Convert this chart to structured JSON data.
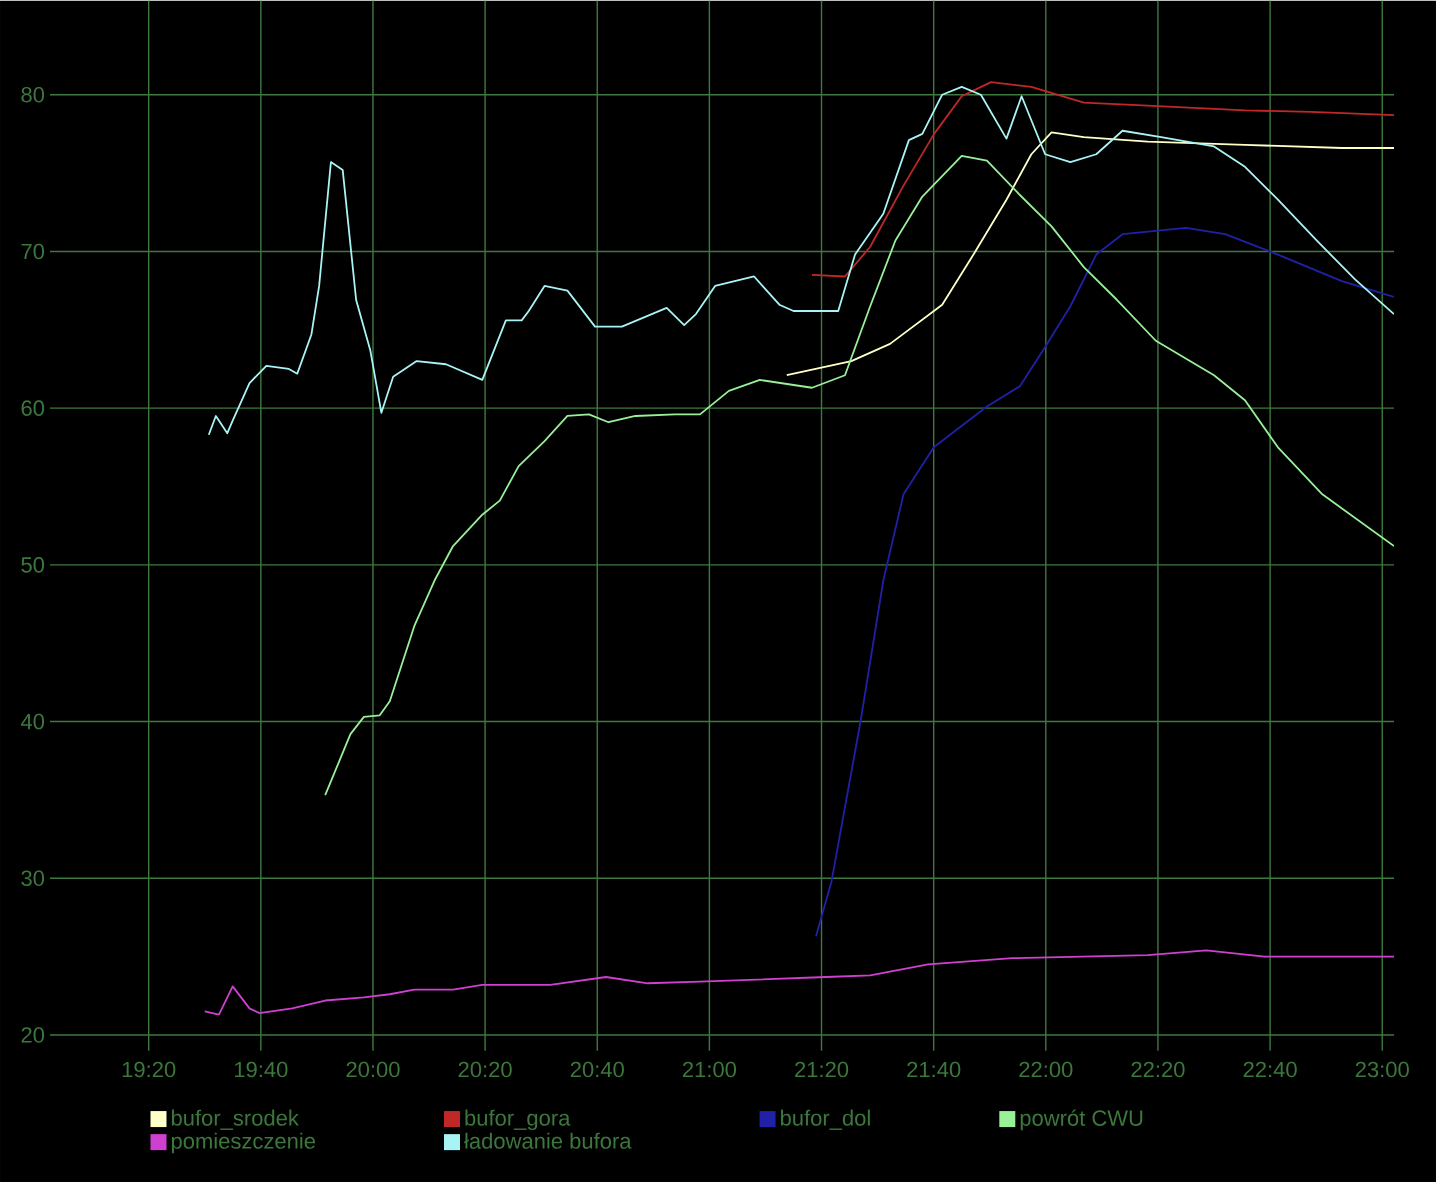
{
  "chart_data": {
    "type": "line",
    "xlim": [
      19.04,
      23.035
    ],
    "ylim": [
      19,
      86
    ],
    "xticks": [
      {
        "value": 19.3333,
        "label": "19:20"
      },
      {
        "value": 19.6667,
        "label": "19:40"
      },
      {
        "value": 20,
        "label": "20:00"
      },
      {
        "value": 20.3333,
        "label": "20:20"
      },
      {
        "value": 20.6667,
        "label": "20:40"
      },
      {
        "value": 21,
        "label": "21:00"
      },
      {
        "value": 21.3333,
        "label": "21:20"
      },
      {
        "value": 21.6667,
        "label": "21:40"
      },
      {
        "value": 22,
        "label": "22:00"
      },
      {
        "value": 22.3333,
        "label": "22:20"
      },
      {
        "value": 22.6667,
        "label": "22:40"
      },
      {
        "value": 23,
        "label": "23:00"
      }
    ],
    "yticks": [
      20,
      30,
      40,
      50,
      60,
      70,
      80
    ],
    "grid": true,
    "legend": "bottom",
    "series": [
      {
        "name": "bufor_srodek",
        "color": "#ffffc8",
        "x": [
          21.23,
          21.422,
          21.537,
          21.692,
          21.785,
          21.883,
          21.957,
          22.017,
          22.113,
          22.303,
          22.592,
          22.88,
          23.035
        ],
        "values": [
          62.1,
          63.0,
          64.1,
          66.6,
          69.8,
          73.3,
          76.2,
          77.6,
          77.3,
          77.0,
          76.8,
          76.6,
          76.6
        ]
      },
      {
        "name": "bufor_gora",
        "color": "#c02828",
        "x": [
          21.305,
          21.403,
          21.478,
          21.577,
          21.668,
          21.75,
          21.837,
          21.957,
          22.113,
          22.303,
          22.592,
          22.788,
          23.035
        ],
        "values": [
          68.5,
          68.4,
          70.3,
          74.2,
          77.5,
          79.9,
          80.8,
          80.5,
          79.5,
          79.3,
          79.0,
          78.9,
          78.7
        ]
      },
      {
        "name": "bufor_dol",
        "color": "#2020a8",
        "x": [
          21.317,
          21.363,
          21.45,
          21.517,
          21.577,
          21.667,
          21.825,
          21.923,
          21.998,
          22.073,
          22.15,
          22.228,
          22.417,
          22.533,
          22.69,
          22.88,
          23.035
        ],
        "values": [
          26.3,
          29.8,
          40.1,
          49.0,
          54.5,
          57.5,
          60.1,
          61.4,
          63.9,
          66.5,
          69.8,
          71.1,
          71.5,
          71.1,
          69.8,
          68.1,
          67.1
        ]
      },
      {
        "name": "powrót CWU",
        "color": "#98f098",
        "x": [
          19.858,
          19.933,
          19.973,
          20.02,
          20.05,
          20.123,
          20.183,
          20.238,
          20.325,
          20.377,
          20.433,
          20.51,
          20.578,
          20.642,
          20.7,
          20.78,
          20.897,
          20.972,
          21.058,
          21.15,
          21.305,
          21.403,
          21.478,
          21.553,
          21.633,
          21.75,
          21.825,
          21.923,
          22.017,
          22.113,
          22.212,
          22.327,
          22.5,
          22.592,
          22.69,
          22.822,
          23.035
        ],
        "values": [
          35.3,
          39.2,
          40.3,
          40.4,
          41.3,
          46.1,
          49.0,
          51.2,
          53.2,
          54.1,
          56.3,
          57.9,
          59.5,
          59.6,
          59.1,
          59.5,
          59.6,
          59.6,
          61.1,
          61.8,
          61.3,
          62.1,
          66.5,
          70.7,
          73.5,
          76.1,
          75.8,
          73.6,
          71.6,
          69.0,
          66.9,
          64.3,
          62.1,
          60.5,
          57.5,
          54.5,
          51.2
        ]
      },
      {
        "name": "pomieszczenie",
        "color": "#d040d0",
        "x": [
          19.5,
          19.542,
          19.583,
          19.633,
          19.662,
          19.76,
          19.858,
          19.973,
          20.05,
          20.123,
          20.238,
          20.325,
          20.527,
          20.693,
          20.817,
          20.972,
          21.347,
          21.478,
          21.65,
          21.9,
          22.303,
          22.477,
          22.65,
          23.035
        ],
        "values": [
          21.5,
          21.3,
          23.1,
          21.7,
          21.4,
          21.7,
          22.2,
          22.4,
          22.6,
          22.9,
          22.9,
          23.2,
          23.2,
          23.7,
          23.3,
          23.4,
          23.7,
          23.8,
          24.5,
          24.9,
          25.1,
          25.4,
          25.0,
          25.0
        ]
      },
      {
        "name": "ładowanie bufora",
        "color": "#a8f4f4",
        "x": [
          19.512,
          19.533,
          19.567,
          19.583,
          19.633,
          19.683,
          19.75,
          19.775,
          19.817,
          19.84,
          19.875,
          19.91,
          19.95,
          19.992,
          20.025,
          20.06,
          20.13,
          20.217,
          20.325,
          20.395,
          20.442,
          20.463,
          20.51,
          20.578,
          20.66,
          20.74,
          20.873,
          20.925,
          20.96,
          21.017,
          21.133,
          21.208,
          21.25,
          21.383,
          21.433,
          21.517,
          21.593,
          21.633,
          21.692,
          21.75,
          21.807,
          21.883,
          21.928,
          21.998,
          22.073,
          22.15,
          22.228,
          22.343,
          22.5,
          22.592,
          22.69,
          22.805,
          22.92,
          23.035
        ],
        "values": [
          58.3,
          59.5,
          58.4,
          59.2,
          61.6,
          62.7,
          62.5,
          62.2,
          64.7,
          67.8,
          75.7,
          75.2,
          66.9,
          63.7,
          59.7,
          62.0,
          63.0,
          62.8,
          61.8,
          65.6,
          65.6,
          66.2,
          67.8,
          67.5,
          65.2,
          65.2,
          66.4,
          65.3,
          66.0,
          67.8,
          68.4,
          66.6,
          66.2,
          66.2,
          69.8,
          72.4,
          77.1,
          77.5,
          80.0,
          80.5,
          80.0,
          77.2,
          79.9,
          76.2,
          75.7,
          76.2,
          77.7,
          77.3,
          76.7,
          75.4,
          73.3,
          70.7,
          68.2,
          66.0
        ]
      }
    ]
  }
}
